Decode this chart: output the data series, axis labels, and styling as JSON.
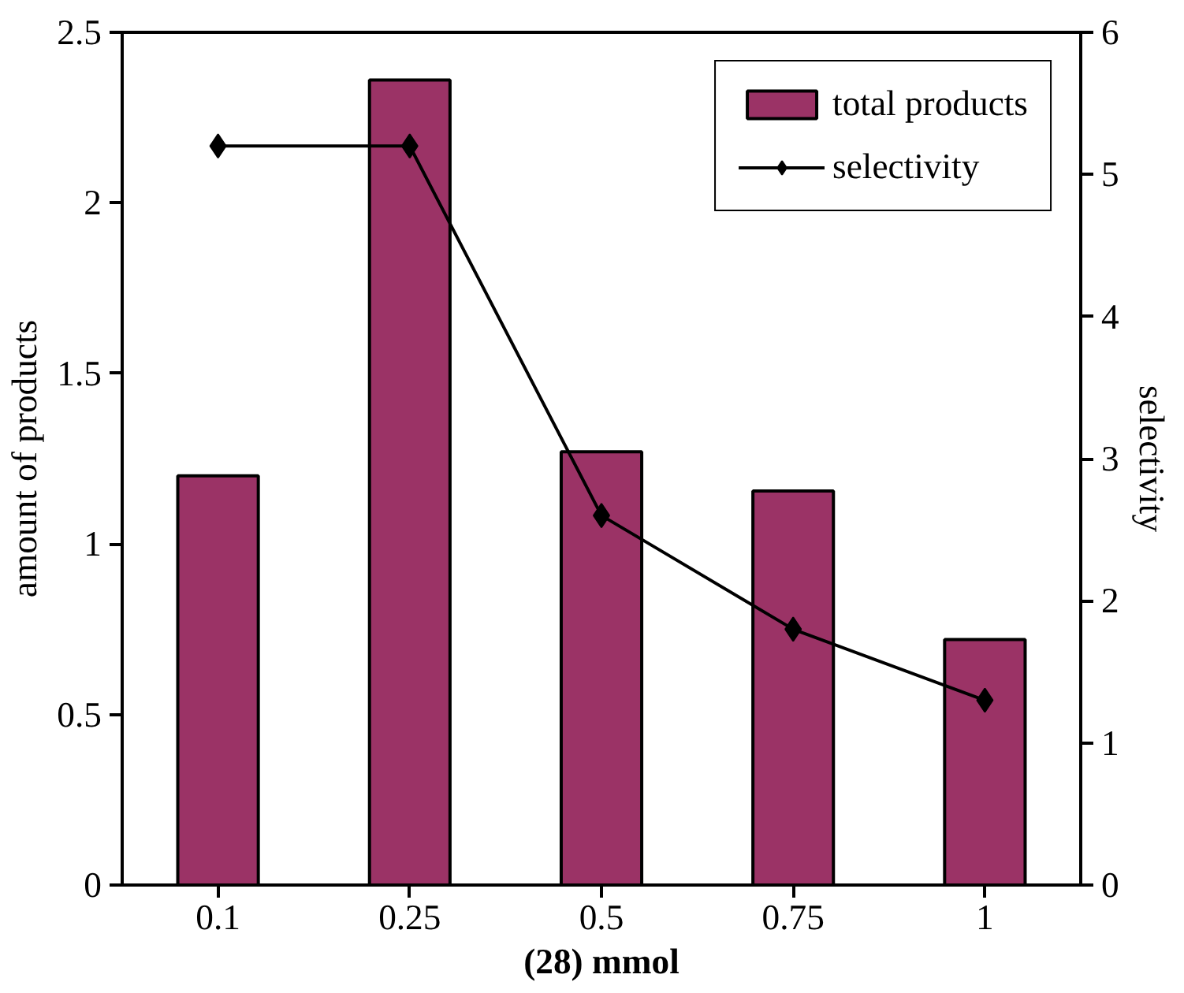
{
  "chart_data": {
    "type": "bar",
    "xlabel": "(28) mmol",
    "ylabel": "amount of products",
    "y2label": "selectivity",
    "categories": [
      "0.1",
      "0.25",
      "0.5",
      "0.75",
      "1"
    ],
    "series": [
      {
        "name": "total products",
        "color": "#9b3366",
        "values": [
          1.2,
          2.36,
          1.27,
          1.155,
          0.72
        ]
      },
      {
        "name": "selectivity",
        "type": "line",
        "axis": "y2",
        "color": "#000000",
        "marker": "diamond",
        "values": [
          5.2,
          5.2,
          2.6,
          1.8,
          1.3
        ]
      }
    ],
    "ylim": [
      0,
      2.5
    ],
    "yticks": [
      0,
      0.5,
      1,
      1.5,
      2,
      2.5
    ],
    "y2lim": [
      0,
      6
    ],
    "y2ticks": [
      0,
      1,
      2,
      3,
      4,
      5,
      6
    ],
    "grid": false,
    "legend": "top right"
  }
}
